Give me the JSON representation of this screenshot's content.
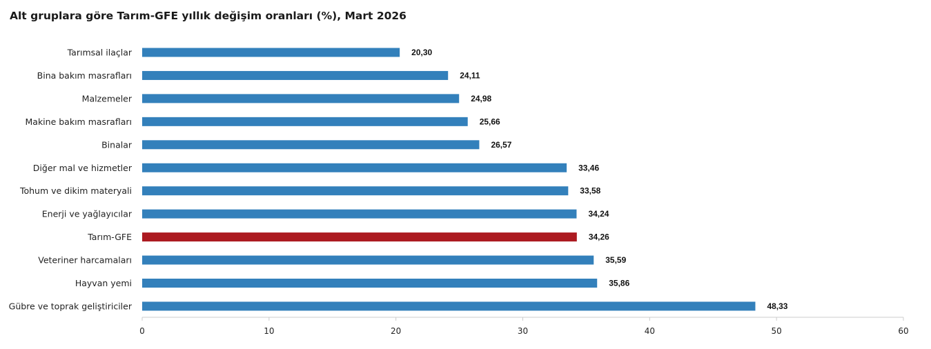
{
  "chart_data": {
    "type": "bar",
    "orientation": "horizontal",
    "title": "Alt gruplara göre Tarım-GFE yıllık değişim oranları (%), Mart 2026",
    "xlabel": "",
    "ylabel": "",
    "xlim": [
      0,
      60
    ],
    "x_ticks": [
      "0",
      "10",
      "20",
      "30",
      "40",
      "50",
      "60"
    ],
    "grid": false,
    "legend": "none",
    "categories": [
      "Tarımsal ilaçlar",
      "Bina bakım masrafları",
      "Malzemeler",
      "Makine bakım masrafları",
      "Binalar",
      "Diğer mal ve hizmetler",
      "Tohum ve dikim materyali",
      "Enerji  ve yağlayıcılar",
      "Tarım-GFE",
      "Veteriner harcamaları",
      "Hayvan yemi",
      "Gübre ve toprak geliştiriciler"
    ],
    "values": [
      20.3,
      24.11,
      24.98,
      25.66,
      26.57,
      33.46,
      33.58,
      34.24,
      34.26,
      35.59,
      35.86,
      48.33
    ],
    "value_labels": [
      "20,30",
      "24,11",
      "24,98",
      "25,66",
      "26,57",
      "33,46",
      "33,58",
      "34,24",
      "34,26",
      "35,59",
      "35,86",
      "48,33"
    ],
    "colors": {
      "default": "#3380bb",
      "highlight": "#ac1a20",
      "axis": "#cccccc"
    },
    "highlight_category": "Tarım-GFE"
  }
}
